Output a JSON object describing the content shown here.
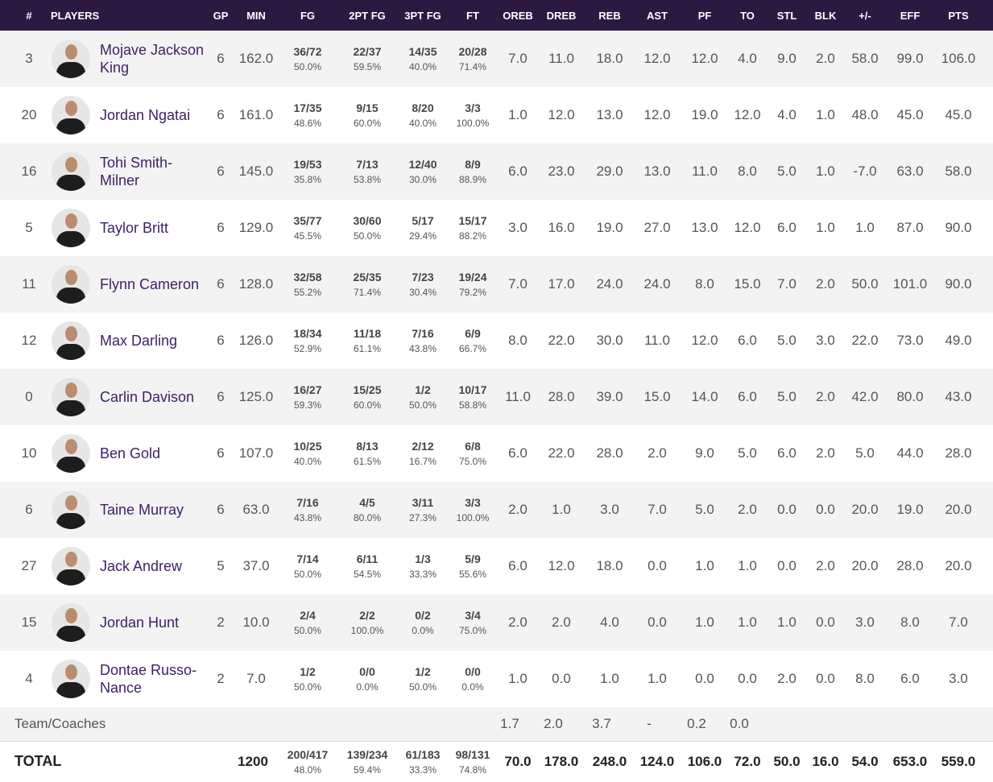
{
  "header": {
    "columns": [
      "#",
      "PLAYERS",
      "GP",
      "MIN",
      "FG",
      "2PT FG",
      "3PT FG",
      "FT",
      "OREB",
      "DREB",
      "REB",
      "AST",
      "PF",
      "TO",
      "STL",
      "BLK",
      "+/-",
      "EFF",
      "PTS"
    ]
  },
  "rows": [
    {
      "number": "3",
      "player": "Mojave Jackson King",
      "gp": "6",
      "min": "162.0",
      "shooting": [
        [
          "36/72",
          "50.0%"
        ],
        [
          "22/37",
          "59.5%"
        ],
        [
          "14/35",
          "40.0%"
        ],
        [
          "20/28",
          "71.4%"
        ]
      ],
      "stats": [
        "7.0",
        "11.0",
        "18.0",
        "12.0",
        "12.0",
        "4.0",
        "9.0",
        "2.0",
        "58.0",
        "99.0",
        "106.0"
      ]
    },
    {
      "number": "20",
      "player": "Jordan Ngatai",
      "gp": "6",
      "min": "161.0",
      "shooting": [
        [
          "17/35",
          "48.6%"
        ],
        [
          "9/15",
          "60.0%"
        ],
        [
          "8/20",
          "40.0%"
        ],
        [
          "3/3",
          "100.0%"
        ]
      ],
      "stats": [
        "1.0",
        "12.0",
        "13.0",
        "12.0",
        "19.0",
        "12.0",
        "4.0",
        "1.0",
        "48.0",
        "45.0",
        "45.0"
      ]
    },
    {
      "number": "16",
      "player": "Tohi Smith-Milner",
      "gp": "6",
      "min": "145.0",
      "shooting": [
        [
          "19/53",
          "35.8%"
        ],
        [
          "7/13",
          "53.8%"
        ],
        [
          "12/40",
          "30.0%"
        ],
        [
          "8/9",
          "88.9%"
        ]
      ],
      "stats": [
        "6.0",
        "23.0",
        "29.0",
        "13.0",
        "11.0",
        "8.0",
        "5.0",
        "1.0",
        "-7.0",
        "63.0",
        "58.0"
      ]
    },
    {
      "number": "5",
      "player": "Taylor Britt",
      "gp": "6",
      "min": "129.0",
      "shooting": [
        [
          "35/77",
          "45.5%"
        ],
        [
          "30/60",
          "50.0%"
        ],
        [
          "5/17",
          "29.4%"
        ],
        [
          "15/17",
          "88.2%"
        ]
      ],
      "stats": [
        "3.0",
        "16.0",
        "19.0",
        "27.0",
        "13.0",
        "12.0",
        "6.0",
        "1.0",
        "1.0",
        "87.0",
        "90.0"
      ]
    },
    {
      "number": "11",
      "player": "Flynn Cameron",
      "gp": "6",
      "min": "128.0",
      "shooting": [
        [
          "32/58",
          "55.2%"
        ],
        [
          "25/35",
          "71.4%"
        ],
        [
          "7/23",
          "30.4%"
        ],
        [
          "19/24",
          "79.2%"
        ]
      ],
      "stats": [
        "7.0",
        "17.0",
        "24.0",
        "24.0",
        "8.0",
        "15.0",
        "7.0",
        "2.0",
        "50.0",
        "101.0",
        "90.0"
      ]
    },
    {
      "number": "12",
      "player": "Max Darling",
      "gp": "6",
      "min": "126.0",
      "shooting": [
        [
          "18/34",
          "52.9%"
        ],
        [
          "11/18",
          "61.1%"
        ],
        [
          "7/16",
          "43.8%"
        ],
        [
          "6/9",
          "66.7%"
        ]
      ],
      "stats": [
        "8.0",
        "22.0",
        "30.0",
        "11.0",
        "12.0",
        "6.0",
        "5.0",
        "3.0",
        "22.0",
        "73.0",
        "49.0"
      ]
    },
    {
      "number": "0",
      "player": "Carlin Davison",
      "gp": "6",
      "min": "125.0",
      "shooting": [
        [
          "16/27",
          "59.3%"
        ],
        [
          "15/25",
          "60.0%"
        ],
        [
          "1/2",
          "50.0%"
        ],
        [
          "10/17",
          "58.8%"
        ]
      ],
      "stats": [
        "11.0",
        "28.0",
        "39.0",
        "15.0",
        "14.0",
        "6.0",
        "5.0",
        "2.0",
        "42.0",
        "80.0",
        "43.0"
      ]
    },
    {
      "number": "10",
      "player": "Ben Gold",
      "gp": "6",
      "min": "107.0",
      "shooting": [
        [
          "10/25",
          "40.0%"
        ],
        [
          "8/13",
          "61.5%"
        ],
        [
          "2/12",
          "16.7%"
        ],
        [
          "6/8",
          "75.0%"
        ]
      ],
      "stats": [
        "6.0",
        "22.0",
        "28.0",
        "2.0",
        "9.0",
        "5.0",
        "6.0",
        "2.0",
        "5.0",
        "44.0",
        "28.0"
      ]
    },
    {
      "number": "6",
      "player": "Taine Murray",
      "gp": "6",
      "min": "63.0",
      "shooting": [
        [
          "7/16",
          "43.8%"
        ],
        [
          "4/5",
          "80.0%"
        ],
        [
          "3/11",
          "27.3%"
        ],
        [
          "3/3",
          "100.0%"
        ]
      ],
      "stats": [
        "2.0",
        "1.0",
        "3.0",
        "7.0",
        "5.0",
        "2.0",
        "0.0",
        "0.0",
        "20.0",
        "19.0",
        "20.0"
      ]
    },
    {
      "number": "27",
      "player": "Jack Andrew",
      "gp": "5",
      "min": "37.0",
      "shooting": [
        [
          "7/14",
          "50.0%"
        ],
        [
          "6/11",
          "54.5%"
        ],
        [
          "1/3",
          "33.3%"
        ],
        [
          "5/9",
          "55.6%"
        ]
      ],
      "stats": [
        "6.0",
        "12.0",
        "18.0",
        "0.0",
        "1.0",
        "1.0",
        "0.0",
        "2.0",
        "20.0",
        "28.0",
        "20.0"
      ]
    },
    {
      "number": "15",
      "player": "Jordan Hunt",
      "gp": "2",
      "min": "10.0",
      "shooting": [
        [
          "2/4",
          "50.0%"
        ],
        [
          "2/2",
          "100.0%"
        ],
        [
          "0/2",
          "0.0%"
        ],
        [
          "3/4",
          "75.0%"
        ]
      ],
      "stats": [
        "2.0",
        "2.0",
        "4.0",
        "0.0",
        "1.0",
        "1.0",
        "1.0",
        "0.0",
        "3.0",
        "8.0",
        "7.0"
      ]
    },
    {
      "number": "4",
      "player": "Dontae Russo-Nance",
      "gp": "2",
      "min": "7.0",
      "shooting": [
        [
          "1/2",
          "50.0%"
        ],
        [
          "0/0",
          "0.0%"
        ],
        [
          "1/2",
          "50.0%"
        ],
        [
          "0/0",
          "0.0%"
        ]
      ],
      "stats": [
        "1.0",
        "0.0",
        "1.0",
        "1.0",
        "0.0",
        "0.0",
        "2.0",
        "0.0",
        "8.0",
        "6.0",
        "3.0"
      ]
    }
  ],
  "team": {
    "label": "Team/Coaches",
    "stats": [
      "1.7",
      "2.0",
      "3.7",
      "-",
      "0.2",
      "0.0"
    ]
  },
  "total": {
    "label": "TOTAL",
    "min": "1200",
    "shooting": [
      [
        "200/417",
        "48.0%"
      ],
      [
        "139/234",
        "59.4%"
      ],
      [
        "61/183",
        "33.3%"
      ],
      [
        "98/131",
        "74.8%"
      ]
    ],
    "stats": [
      "70.0",
      "178.0",
      "248.0",
      "124.0",
      "106.0",
      "72.0",
      "50.0",
      "16.0",
      "54.0",
      "653.0",
      "559.0"
    ]
  }
}
